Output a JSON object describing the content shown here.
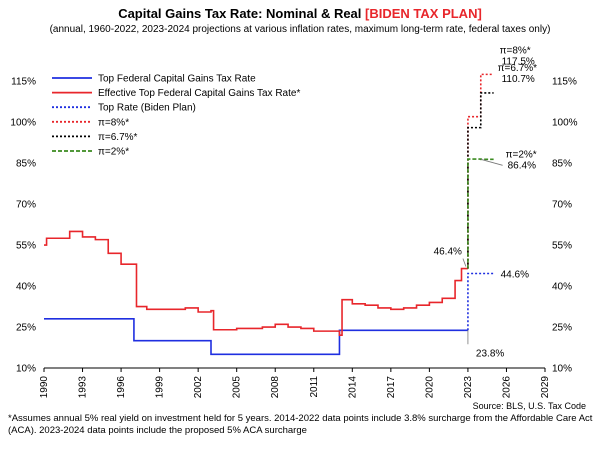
{
  "chart_data": {
    "type": "line",
    "title": "Capital Gains Tax Rate: Nominal & Real",
    "title_accent": "[BIDEN TAX PLAN]",
    "subtitle": "(annual, 1960-2022, 2023-2024 projections at various inflation rates, maximum long-term rate, federal taxes only)",
    "source": "Source: BLS, U.S. Tax Code",
    "footnote": "*Assumes annual 5% real yield on investment held for 5 years. 2014-2022 data points include 3.8% surcharge from the Affordable Care Act (ACA).  2023-2024 data points include the proposed 5% ACA surcharge",
    "xlim": [
      1990,
      2029
    ],
    "ylim": [
      10,
      118
    ],
    "x_ticks": [
      1990,
      1993,
      1996,
      1999,
      2002,
      2005,
      2008,
      2011,
      2014,
      2017,
      2020,
      2023,
      2026,
      2029
    ],
    "y_ticks": [
      10,
      25,
      40,
      55,
      70,
      85,
      100,
      115
    ],
    "y_tick_labels": [
      "10%",
      "25%",
      "40%",
      "55%",
      "70%",
      "85%",
      "100%",
      "115%"
    ],
    "grid": false,
    "legend_position": "top-left",
    "series": [
      {
        "name": "Top Federal Capital Gains Tax Rate",
        "color": "#1f2fe0",
        "style": "solid",
        "step": true,
        "points": [
          [
            1990,
            28
          ],
          [
            1997,
            20
          ],
          [
            2003,
            15
          ],
          [
            2013,
            23.8
          ],
          [
            2023,
            23.8
          ]
        ]
      },
      {
        "name": "Effective Top Federal Capital Gains Tax Rate*",
        "color": "#e8262b",
        "style": "solid",
        "step": true,
        "points": [
          [
            1990,
            55
          ],
          [
            1990.2,
            57.5
          ],
          [
            1991,
            57.5
          ],
          [
            1992,
            60
          ],
          [
            1993,
            58
          ],
          [
            1994,
            57
          ],
          [
            1995,
            52
          ],
          [
            1996,
            48
          ],
          [
            1997,
            48
          ],
          [
            1997.2,
            32.5
          ],
          [
            1998,
            31.5
          ],
          [
            1999,
            31.5
          ],
          [
            2000,
            31.5
          ],
          [
            2001,
            32
          ],
          [
            2002,
            30.5
          ],
          [
            2003,
            31
          ],
          [
            2003.2,
            24
          ],
          [
            2004,
            24
          ],
          [
            2005,
            24.5
          ],
          [
            2006,
            24.5
          ],
          [
            2007,
            25
          ],
          [
            2008,
            26
          ],
          [
            2009,
            25
          ],
          [
            2010,
            24.5
          ],
          [
            2011,
            23.5
          ],
          [
            2012,
            23.5
          ],
          [
            2013,
            22
          ],
          [
            2013.2,
            35
          ],
          [
            2014,
            33.5
          ],
          [
            2015,
            33
          ],
          [
            2016,
            32
          ],
          [
            2017,
            31.5
          ],
          [
            2018,
            32
          ],
          [
            2019,
            33
          ],
          [
            2020,
            34
          ],
          [
            2021,
            35.5
          ],
          [
            2022,
            42
          ],
          [
            2022.5,
            46.4
          ],
          [
            2023,
            46.4
          ]
        ]
      },
      {
        "name": "Top Rate (Biden Plan)",
        "color": "#1f2fe0",
        "style": "dotted",
        "step": true,
        "points": [
          [
            2023,
            23.8
          ],
          [
            2023,
            44.6
          ],
          [
            2025,
            44.6
          ]
        ]
      },
      {
        "name": "π=8%*",
        "color": "#e8262b",
        "style": "dotted",
        "step": true,
        "points": [
          [
            2023,
            46.4
          ],
          [
            2023,
            102
          ],
          [
            2024,
            102
          ],
          [
            2024,
            117.5
          ],
          [
            2025,
            117.5
          ]
        ]
      },
      {
        "name": "π=6.7%*",
        "color": "#000000",
        "style": "dotted",
        "step": true,
        "points": [
          [
            2023,
            46.4
          ],
          [
            2023,
            98
          ],
          [
            2024,
            98
          ],
          [
            2024,
            110.7
          ],
          [
            2025,
            110.7
          ]
        ]
      },
      {
        "name": "π=2%*",
        "color": "#3a8a1f",
        "style": "dashed",
        "step": true,
        "points": [
          [
            2023,
            46.4
          ],
          [
            2023,
            86.5
          ],
          [
            2024,
            86.5
          ],
          [
            2024,
            86.4
          ],
          [
            2025,
            86.4
          ]
        ]
      }
    ],
    "annotations": [
      {
        "label": "117.5%",
        "x": 2025,
        "y": 117.5
      },
      {
        "label": "π=8%*",
        "x": 2025,
        "y": 117.5
      },
      {
        "label": "110.7%",
        "x": 2025,
        "y": 110.7
      },
      {
        "label": "π=6.7%*",
        "x": 2025,
        "y": 110.7
      },
      {
        "label": "86.4%",
        "x": 2025,
        "y": 86.4
      },
      {
        "label": "π=2%*",
        "x": 2025,
        "y": 86.4
      },
      {
        "label": "46.4%",
        "x": 2023,
        "y": 46.4
      },
      {
        "label": "44.6%",
        "x": 2025,
        "y": 44.6
      },
      {
        "label": "23.8%",
        "x": 2023,
        "y": 23.8
      }
    ]
  }
}
